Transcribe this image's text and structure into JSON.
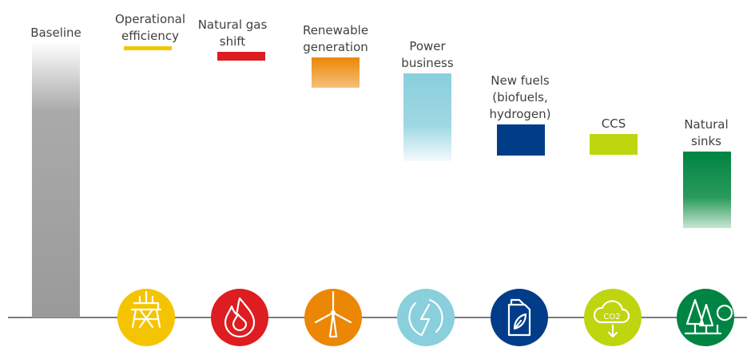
{
  "baseline": {
    "label": "Baseline"
  },
  "levers": [
    {
      "label_lines": [
        "Operational",
        "efficiency"
      ]
    },
    {
      "label_lines": [
        "Natural gas",
        "shift"
      ]
    },
    {
      "label_lines": [
        "Renewable",
        "generation"
      ]
    },
    {
      "label_lines": [
        "Power",
        "business"
      ]
    },
    {
      "label_lines": [
        "New fuels",
        "(biofuels,",
        "hydrogen)"
      ]
    },
    {
      "label_lines": [
        "CCS"
      ]
    },
    {
      "label_lines": [
        "Natural",
        "sinks"
      ]
    }
  ],
  "icons": {
    "co2": "CO2"
  }
}
